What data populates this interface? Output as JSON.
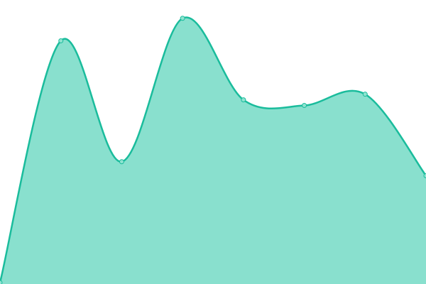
{
  "chart_data": {
    "type": "area",
    "title": "",
    "xlabel": "",
    "ylabel": "",
    "x": [
      0,
      1,
      2,
      3,
      4,
      5,
      6,
      7
    ],
    "series": [
      {
        "values": [
          0,
          86,
          43,
          94,
          65,
          63,
          67,
          38
        ]
      }
    ],
    "ylim": [
      0,
      100
    ],
    "curve": "smooth",
    "markers": true,
    "grid": false,
    "axes_visible": false,
    "colors": {
      "line": "#1abc9c",
      "fill": "#89e0ce",
      "marker_fill": "#8fe3d0"
    }
  }
}
